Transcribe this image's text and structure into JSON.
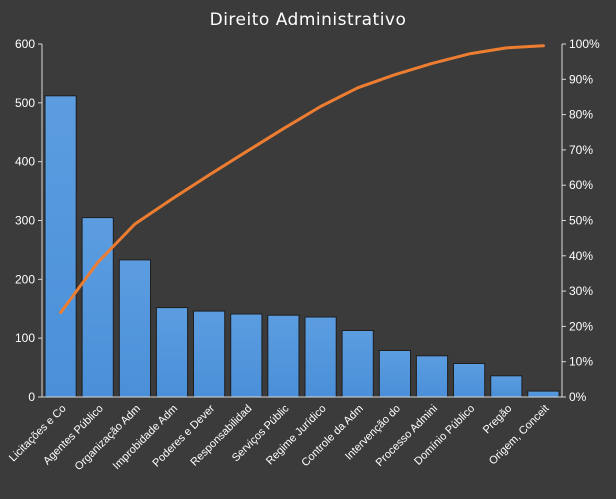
{
  "chart_data": {
    "type": "bar",
    "title": "Direito  Administrativo",
    "categories": [
      "Licitações e Co",
      "Agentes Público",
      "Organização Adm",
      "Improbidade Adm",
      "Poderes e Dever",
      "Responsabilidad",
      "Serviços Públic",
      "Regime Jurídico",
      "Controle da Adm",
      "Intervenção do",
      "Processo Admini",
      "Domínio Público",
      "Pregão",
      "Origem, Conceit"
    ],
    "series": [
      {
        "type": "bar",
        "values": [
          512,
          305,
          233,
          152,
          146,
          141,
          139,
          136,
          113,
          79,
          70,
          57,
          36,
          10
        ]
      },
      {
        "type": "line",
        "axis": "right",
        "values": [
          23.9,
          38.1,
          49.0,
          56.1,
          62.9,
          69.5,
          76.0,
          82.3,
          87.6,
          91.3,
          94.5,
          97.2,
          98.9,
          99.5
        ]
      }
    ],
    "ylim": [
      0,
      600
    ],
    "y_ticks": [
      "0",
      "100",
      "200",
      "300",
      "400",
      "500",
      "600"
    ],
    "y2lim": [
      0,
      100
    ],
    "y2_ticks": [
      "0%",
      "10%",
      "20%",
      "30%",
      "40%",
      "50%",
      "60%",
      "70%",
      "80%",
      "90%",
      "100%"
    ],
    "grid": false,
    "legend": "none",
    "colors": {
      "background": "#3b3b3b",
      "bar": "#4a8fd8",
      "bar_edge": "#1e1e1e",
      "line": "#ed7d31",
      "text": "#ffffff",
      "axis": "#d8d8d8"
    }
  }
}
